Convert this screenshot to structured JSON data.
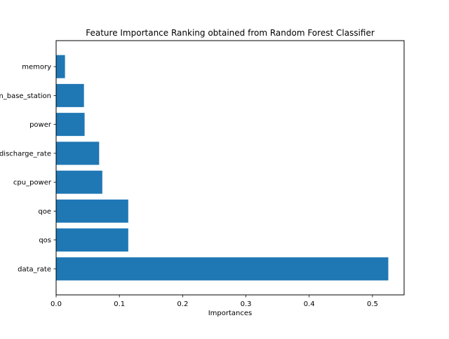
{
  "chart_data": {
    "type": "bar",
    "orientation": "horizontal",
    "title": "Feature Importance Ranking obtained from Random Forest Classifier",
    "xlabel": "Importances",
    "ylabel": "",
    "categories": [
      "data_rate",
      "qos",
      "qoe",
      "cpu_power",
      "discharge_rate",
      "power",
      "distance_from_base_station",
      "memory"
    ],
    "values": [
      0.525,
      0.114,
      0.114,
      0.073,
      0.068,
      0.045,
      0.044,
      0.014
    ],
    "xlim": [
      0,
      0.55
    ],
    "xticks": [
      "0.0",
      "0.1",
      "0.2",
      "0.3",
      "0.4",
      "0.5"
    ],
    "bar_color": "#1f77b4",
    "grid": false,
    "legend": "none"
  }
}
